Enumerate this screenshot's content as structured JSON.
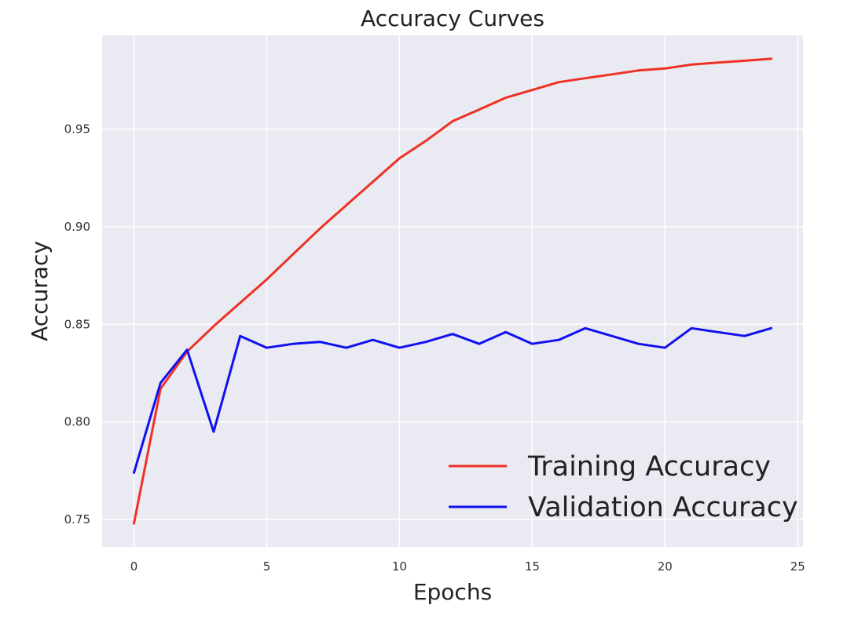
{
  "chart_data": {
    "type": "line",
    "title": "Accuracy Curves",
    "xlabel": "Epochs",
    "ylabel": "Accuracy",
    "xlim": [
      -1.2,
      25.2
    ],
    "ylim": [
      0.736,
      0.998
    ],
    "xticks": [
      0,
      5,
      10,
      15,
      20,
      25
    ],
    "xtick_labels": [
      "0",
      "5",
      "10",
      "15",
      "20",
      "25"
    ],
    "yticks": [
      0.75,
      0.8,
      0.85,
      0.9,
      0.95
    ],
    "ytick_labels": [
      "0.75",
      "0.80",
      "0.85",
      "0.90",
      "0.95"
    ],
    "grid": true,
    "legend_position": "lower-right",
    "x": [
      0,
      1,
      2,
      3,
      4,
      5,
      6,
      7,
      8,
      9,
      10,
      11,
      12,
      13,
      14,
      15,
      16,
      17,
      18,
      19,
      20,
      21,
      22,
      23,
      24
    ],
    "series": [
      {
        "name": "Training Accuracy",
        "color": "#ee3124",
        "values": [
          0.748,
          0.817,
          0.836,
          0.849,
          0.861,
          0.873,
          0.886,
          0.899,
          0.911,
          0.923,
          0.935,
          0.944,
          0.954,
          0.96,
          0.966,
          0.97,
          0.974,
          0.976,
          0.978,
          0.98,
          0.981,
          0.983,
          0.984,
          0.985,
          0.986
        ]
      },
      {
        "name": "Validation Accuracy",
        "color": "#1010f0",
        "values": [
          0.774,
          0.82,
          0.837,
          0.795,
          0.844,
          0.838,
          0.84,
          0.841,
          0.838,
          0.842,
          0.838,
          0.841,
          0.845,
          0.84,
          0.846,
          0.84,
          0.842,
          0.848,
          0.844,
          0.84,
          0.838,
          0.848,
          0.846,
          0.844,
          0.848
        ]
      }
    ],
    "colors": {
      "plot_background": "#eaeaf2",
      "grid": "#ffffff"
    }
  }
}
